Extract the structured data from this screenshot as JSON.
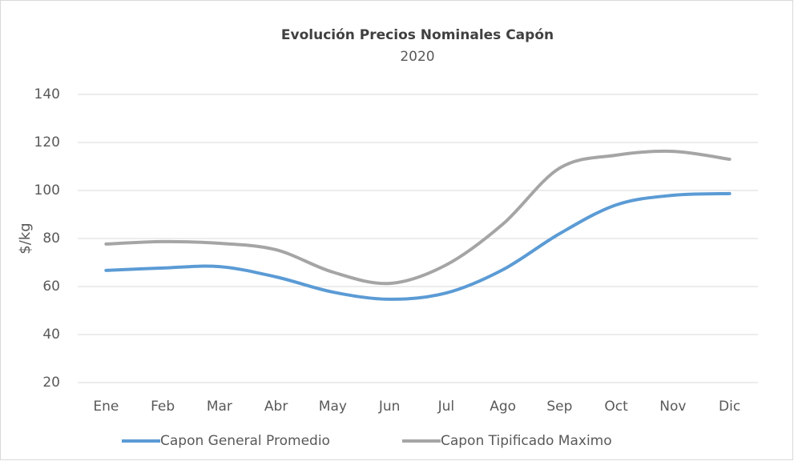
{
  "chart_data": {
    "type": "line",
    "title": "Evolución Precios  Nominales Capón",
    "subtitle": "2020",
    "y_label": "$/kg",
    "categories": [
      "Ene",
      "Feb",
      "Mar",
      "Abr",
      "May",
      "Jun",
      "Jul",
      "Ago",
      "Sep",
      "Oct",
      "Nov",
      "Dic"
    ],
    "series": [
      {
        "name": "Capon General Promedio",
        "color": "#5b9bd5",
        "values": [
          66.7,
          67.7,
          68.3,
          64,
          57.7,
          54.7,
          57.3,
          67,
          82,
          94,
          98,
          98.7
        ]
      },
      {
        "name": "Capon Tipificado Maximo",
        "color": "#a5a5a5",
        "values": [
          77.7,
          78.7,
          78,
          75.3,
          66,
          61.3,
          69,
          86,
          109.3,
          114.7,
          116.3,
          113
        ]
      }
    ],
    "ylim": [
      20,
      140
    ],
    "yticks": [
      20,
      40,
      60,
      80,
      100,
      120,
      140
    ],
    "grid": true,
    "smooth": true,
    "legend": "bottom"
  }
}
